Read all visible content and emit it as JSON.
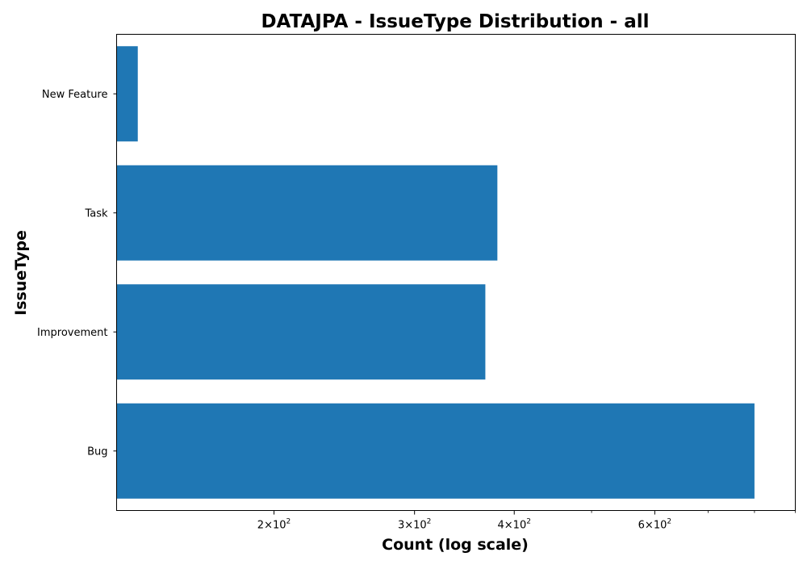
{
  "chart_data": {
    "type": "bar",
    "orientation": "horizontal",
    "title": "DATAJPA - IssueType Distribution - all",
    "xlabel": "Count (log scale)",
    "ylabel": "IssueType",
    "x_scale": "log",
    "xlim": [
      127,
      900
    ],
    "categories": [
      "Bug",
      "Improvement",
      "Task",
      "New Feature"
    ],
    "values": [
      800,
      368,
      381,
      135
    ],
    "bar_color": "#1f77b4",
    "grid": false,
    "major_ticks": [
      {
        "value": 200,
        "mantissa": "2",
        "base": "10",
        "exponent": "2"
      },
      {
        "value": 300,
        "mantissa": "3",
        "base": "10",
        "exponent": "2"
      },
      {
        "value": 400,
        "mantissa": "4",
        "base": "10",
        "exponent": "2"
      },
      {
        "value": 600,
        "mantissa": "6",
        "base": "10",
        "exponent": "2"
      }
    ],
    "minor_ticks": [
      500,
      700,
      800,
      900
    ]
  }
}
